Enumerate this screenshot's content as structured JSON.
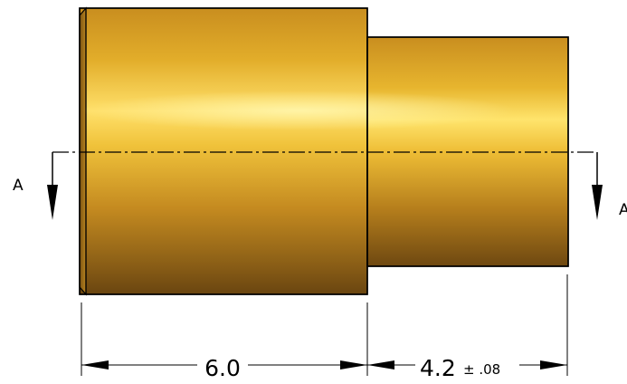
{
  "section_marker": {
    "left": "A",
    "right": "A"
  },
  "dimensions": {
    "large_length": "6.0",
    "small_length": "4.2",
    "small_tolerance": "± .08"
  }
}
